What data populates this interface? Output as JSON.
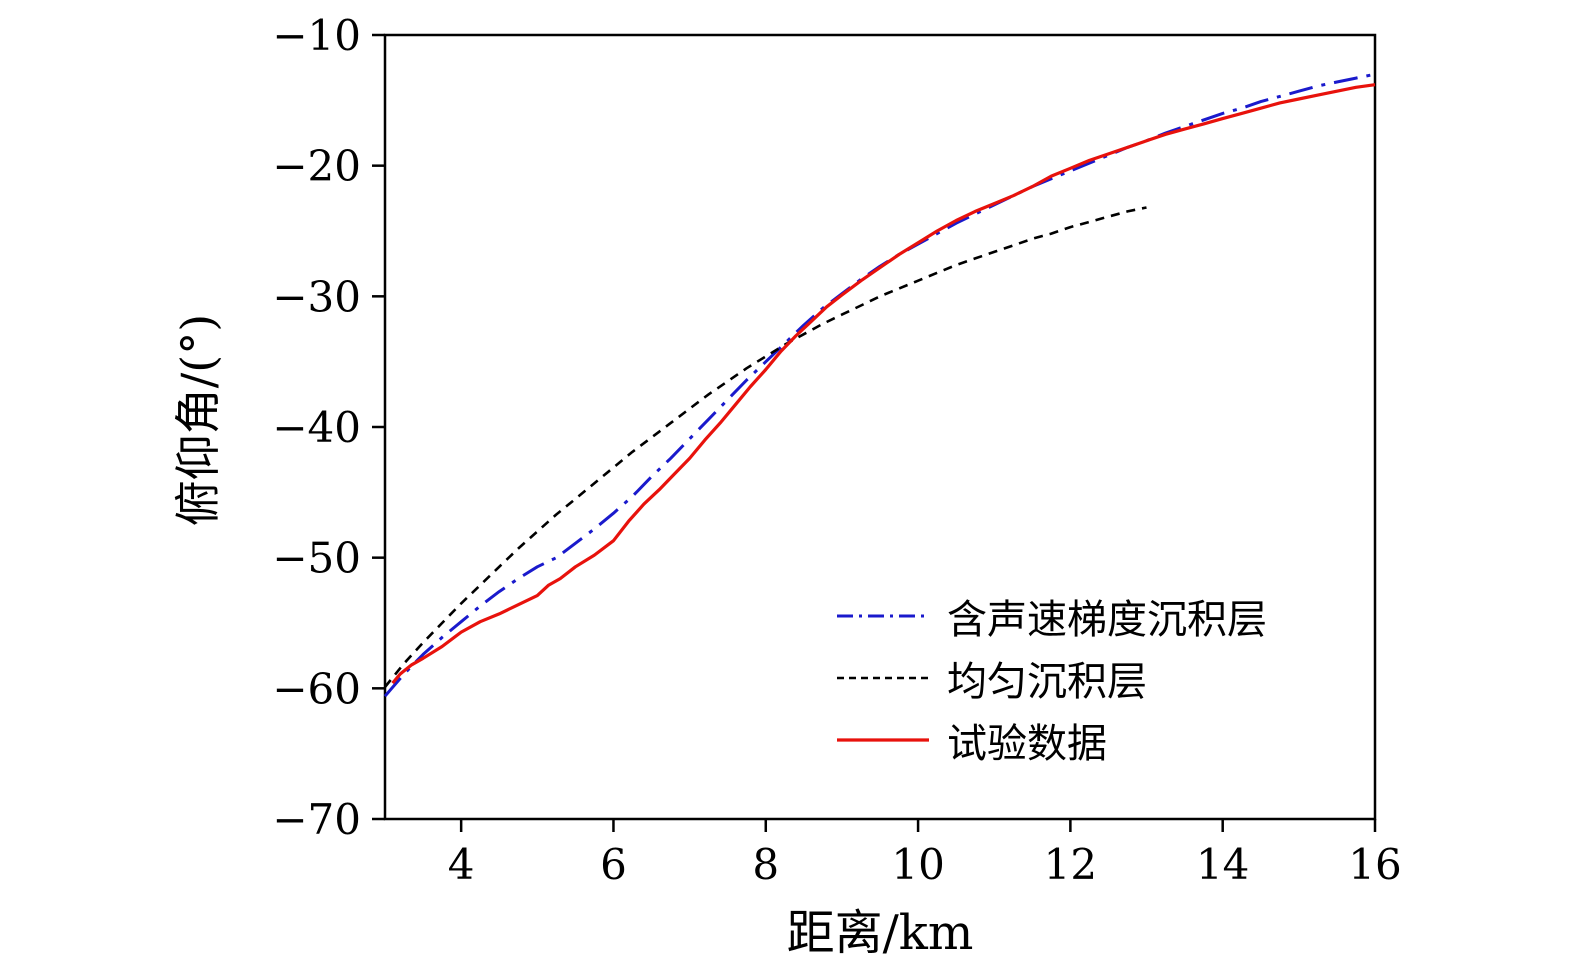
{
  "chart_data": {
    "type": "line",
    "title": "",
    "xlabel": "距离/km",
    "ylabel": "俯仰角/(°)",
    "xlim": [
      3,
      16
    ],
    "ylim": [
      -70,
      -10
    ],
    "grid": false,
    "legend_position": "inside-lower-right",
    "x_ticks": {
      "values": [
        4,
        6,
        8,
        10,
        12,
        14,
        16
      ],
      "labels": [
        "4",
        "6",
        "8",
        "10",
        "12",
        "14",
        "16"
      ]
    },
    "y_ticks": {
      "values": [
        -70,
        -60,
        -50,
        -40,
        -30,
        -20,
        -10
      ],
      "labels": [
        "−70",
        "−60",
        "−50",
        "−40",
        "−30",
        "−20",
        "−10"
      ]
    },
    "axis_color": "#000000",
    "series": [
      {
        "name": "含声速梯度沉积层",
        "color": "#1a1acc",
        "style": "dashdot",
        "width": 3,
        "points": [
          [
            3.0,
            -60.6
          ],
          [
            3.25,
            -58.9
          ],
          [
            3.5,
            -57.4
          ],
          [
            3.75,
            -56.1
          ],
          [
            4.0,
            -54.9
          ],
          [
            4.25,
            -53.7
          ],
          [
            4.5,
            -52.6
          ],
          [
            4.75,
            -51.6
          ],
          [
            5.0,
            -50.7
          ],
          [
            5.25,
            -50.0
          ],
          [
            5.5,
            -48.9
          ],
          [
            5.75,
            -47.8
          ],
          [
            6.0,
            -46.6
          ],
          [
            6.25,
            -45.3
          ],
          [
            6.5,
            -43.8
          ],
          [
            6.75,
            -42.4
          ],
          [
            7.0,
            -40.9
          ],
          [
            7.25,
            -39.4
          ],
          [
            7.5,
            -37.9
          ],
          [
            7.75,
            -36.4
          ],
          [
            8.0,
            -35.0
          ],
          [
            8.25,
            -33.6
          ],
          [
            8.5,
            -32.2
          ],
          [
            8.75,
            -30.9
          ],
          [
            9.0,
            -29.8
          ],
          [
            9.25,
            -28.7
          ],
          [
            9.5,
            -27.7
          ],
          [
            9.75,
            -26.8
          ],
          [
            10.0,
            -26.0
          ],
          [
            10.25,
            -25.2
          ],
          [
            10.5,
            -24.4
          ],
          [
            10.75,
            -23.7
          ],
          [
            11.0,
            -23.0
          ],
          [
            11.25,
            -22.3
          ],
          [
            11.5,
            -21.6
          ],
          [
            11.75,
            -21.0
          ],
          [
            12.0,
            -20.4
          ],
          [
            12.25,
            -19.8
          ],
          [
            12.5,
            -19.2
          ],
          [
            12.75,
            -18.6
          ],
          [
            13.0,
            -18.1
          ],
          [
            13.25,
            -17.5
          ],
          [
            13.5,
            -17.0
          ],
          [
            13.75,
            -16.5
          ],
          [
            14.0,
            -16.0
          ],
          [
            14.25,
            -15.6
          ],
          [
            14.5,
            -15.1
          ],
          [
            14.75,
            -14.7
          ],
          [
            15.0,
            -14.3
          ],
          [
            15.25,
            -13.9
          ],
          [
            15.5,
            -13.6
          ],
          [
            15.75,
            -13.3
          ],
          [
            16.0,
            -13.0
          ]
        ]
      },
      {
        "name": "均匀沉积层",
        "color": "#000000",
        "style": "dashed",
        "width": 2.6,
        "points": [
          [
            3.0,
            -59.9
          ],
          [
            3.25,
            -58.1
          ],
          [
            3.5,
            -56.5
          ],
          [
            3.75,
            -55.0
          ],
          [
            4.0,
            -53.5
          ],
          [
            4.25,
            -52.1
          ],
          [
            4.5,
            -50.7
          ],
          [
            4.75,
            -49.3
          ],
          [
            5.0,
            -48.0
          ],
          [
            5.25,
            -46.7
          ],
          [
            5.5,
            -45.5
          ],
          [
            5.75,
            -44.3
          ],
          [
            6.0,
            -43.1
          ],
          [
            6.25,
            -41.9
          ],
          [
            6.5,
            -40.8
          ],
          [
            6.75,
            -39.7
          ],
          [
            7.0,
            -38.6
          ],
          [
            7.25,
            -37.5
          ],
          [
            7.5,
            -36.5
          ],
          [
            7.75,
            -35.5
          ],
          [
            8.0,
            -34.6
          ],
          [
            8.25,
            -33.7
          ],
          [
            8.5,
            -32.9
          ],
          [
            8.75,
            -32.1
          ],
          [
            9.0,
            -31.4
          ],
          [
            9.25,
            -30.7
          ],
          [
            9.5,
            -30.0
          ],
          [
            9.75,
            -29.4
          ],
          [
            10.0,
            -28.8
          ],
          [
            10.25,
            -28.2
          ],
          [
            10.5,
            -27.6
          ],
          [
            10.75,
            -27.1
          ],
          [
            11.0,
            -26.6
          ],
          [
            11.25,
            -26.1
          ],
          [
            11.5,
            -25.6
          ],
          [
            11.75,
            -25.2
          ],
          [
            12.0,
            -24.7
          ],
          [
            12.25,
            -24.3
          ],
          [
            12.5,
            -23.9
          ],
          [
            12.75,
            -23.5
          ],
          [
            13.0,
            -23.2
          ]
        ]
      },
      {
        "name": "试验数据",
        "color": "#e8120c",
        "style": "solid",
        "width": 3.2,
        "points": [
          [
            3.1,
            -59.6
          ],
          [
            3.2,
            -58.9
          ],
          [
            3.35,
            -58.2
          ],
          [
            3.5,
            -57.7
          ],
          [
            3.75,
            -56.8
          ],
          [
            4.0,
            -55.7
          ],
          [
            4.25,
            -54.9
          ],
          [
            4.5,
            -54.3
          ],
          [
            4.75,
            -53.6
          ],
          [
            5.0,
            -52.9
          ],
          [
            5.15,
            -52.1
          ],
          [
            5.3,
            -51.6
          ],
          [
            5.5,
            -50.7
          ],
          [
            5.75,
            -49.8
          ],
          [
            6.0,
            -48.7
          ],
          [
            6.2,
            -47.2
          ],
          [
            6.4,
            -45.9
          ],
          [
            6.6,
            -44.8
          ],
          [
            6.8,
            -43.6
          ],
          [
            7.0,
            -42.4
          ],
          [
            7.2,
            -41.0
          ],
          [
            7.4,
            -39.7
          ],
          [
            7.6,
            -38.3
          ],
          [
            7.8,
            -36.9
          ],
          [
            8.0,
            -35.6
          ],
          [
            8.2,
            -34.2
          ],
          [
            8.4,
            -33.0
          ],
          [
            8.6,
            -31.9
          ],
          [
            8.8,
            -30.8
          ],
          [
            9.0,
            -29.9
          ],
          [
            9.25,
            -28.8
          ],
          [
            9.5,
            -27.8
          ],
          [
            9.75,
            -26.8
          ],
          [
            10.0,
            -25.9
          ],
          [
            10.25,
            -25.0
          ],
          [
            10.5,
            -24.2
          ],
          [
            10.75,
            -23.5
          ],
          [
            11.0,
            -22.9
          ],
          [
            11.25,
            -22.3
          ],
          [
            11.5,
            -21.6
          ],
          [
            11.75,
            -20.8
          ],
          [
            12.0,
            -20.2
          ],
          [
            12.25,
            -19.6
          ],
          [
            12.5,
            -19.1
          ],
          [
            12.75,
            -18.6
          ],
          [
            13.0,
            -18.1
          ],
          [
            13.25,
            -17.6
          ],
          [
            13.5,
            -17.2
          ],
          [
            13.75,
            -16.8
          ],
          [
            14.0,
            -16.4
          ],
          [
            14.25,
            -16.0
          ],
          [
            14.5,
            -15.6
          ],
          [
            14.75,
            -15.2
          ],
          [
            15.0,
            -14.9
          ],
          [
            15.25,
            -14.6
          ],
          [
            15.5,
            -14.3
          ],
          [
            15.75,
            -14.0
          ],
          [
            16.0,
            -13.8
          ]
        ]
      }
    ]
  }
}
